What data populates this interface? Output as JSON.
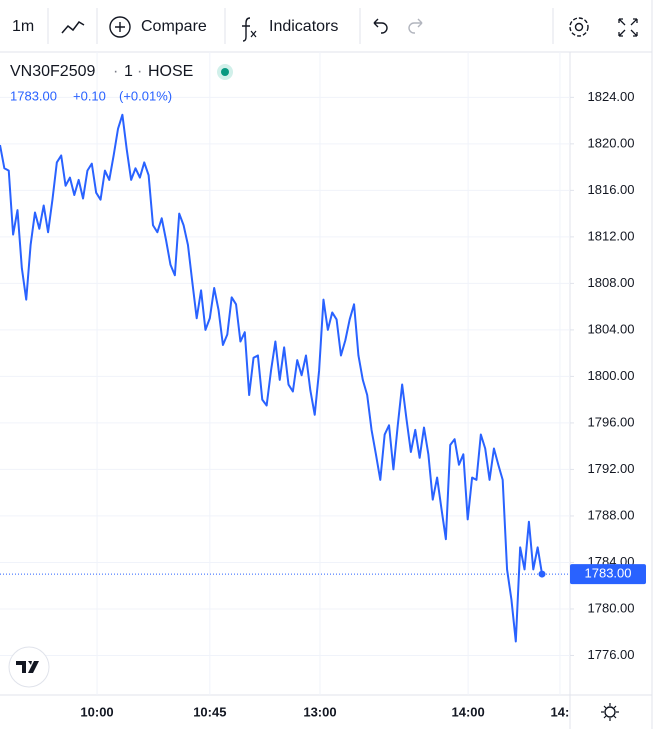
{
  "toolbar": {
    "interval": "1m",
    "compare": "Compare",
    "indicators": "Indicators"
  },
  "chart_data": {
    "type": "line",
    "header": {
      "symbol": "VN30F2509",
      "interval": "1",
      "exchange": "HOSE",
      "price": "1783.00",
      "change": "+0.10",
      "change_pct": "(+0.01%)"
    },
    "series": [
      {
        "name": "VN30F2509",
        "color": "#2962ff",
        "values": [
          1819.9,
          1817.9,
          1817.7,
          1812.2,
          1814.3,
          1809.3,
          1806.6,
          1811.3,
          1814.1,
          1812.7,
          1814.7,
          1812.4,
          1815.2,
          1818.4,
          1819.0,
          1816.4,
          1817.1,
          1815.6,
          1816.9,
          1815.3,
          1817.7,
          1818.3,
          1815.8,
          1815.2,
          1817.7,
          1816.9,
          1819.0,
          1821.3,
          1822.5,
          1819.5,
          1816.9,
          1817.9,
          1817.1,
          1818.4,
          1817.3,
          1813.0,
          1812.4,
          1813.6,
          1811.7,
          1809.6,
          1808.7,
          1814.0,
          1813.0,
          1811.3,
          1808.1,
          1805.0,
          1807.4,
          1804.0,
          1805.0,
          1807.6,
          1805.7,
          1802.7,
          1803.6,
          1806.8,
          1806.2,
          1803.0,
          1803.8,
          1798.4,
          1801.6,
          1801.8,
          1798.0,
          1797.5,
          1800.5,
          1803.0,
          1799.7,
          1802.5,
          1799.3,
          1798.7,
          1801.4,
          1800.1,
          1801.8,
          1798.8,
          1796.7,
          1800.5,
          1806.6,
          1804.0,
          1805.5,
          1804.9,
          1801.8,
          1803.1,
          1804.9,
          1806.2,
          1801.8,
          1799.7,
          1798.4,
          1795.4,
          1793.3,
          1791.1,
          1795.0,
          1795.8,
          1792.0,
          1795.8,
          1799.3,
          1796.3,
          1793.5,
          1795.4,
          1793.0,
          1795.6,
          1793.3,
          1789.4,
          1791.3,
          1788.6,
          1786.0,
          1794.1,
          1794.6,
          1792.4,
          1793.3,
          1787.7,
          1791.3,
          1791.1,
          1795.0,
          1793.8,
          1791.1,
          1793.8,
          1792.4,
          1791.1,
          1783.4,
          1780.8,
          1777.2,
          1785.3,
          1783.4,
          1787.5,
          1783.4,
          1785.3,
          1783.0
        ]
      }
    ],
    "last_price": {
      "value": 1783,
      "label": "1783.00"
    },
    "xlim": [
      0,
      130.4
    ],
    "xticks": [
      {
        "value": 22.2,
        "label": "10:00"
      },
      {
        "value": 48,
        "label": "10:45"
      },
      {
        "value": 73.2,
        "label": "13:00"
      },
      {
        "value": 107.1,
        "label": "14:00"
      },
      {
        "value": 128.1,
        "label": "14:"
      }
    ],
    "ylim": [
      1772.6,
      1827.9
    ],
    "yticks": [
      {
        "value": 1776,
        "label": "1776.00"
      },
      {
        "value": 1780,
        "label": "1780.00"
      },
      {
        "value": 1784,
        "label": "1784.00"
      },
      {
        "value": 1788,
        "label": "1788.00"
      },
      {
        "value": 1792,
        "label": "1792.00"
      },
      {
        "value": 1796,
        "label": "1796.00"
      },
      {
        "value": 1800,
        "label": "1800.00"
      },
      {
        "value": 1804,
        "label": "1804.00"
      },
      {
        "value": 1808,
        "label": "1808.00"
      },
      {
        "value": 1812,
        "label": "1812.00"
      },
      {
        "value": 1816,
        "label": "1816.00"
      },
      {
        "value": 1820,
        "label": "1820.00"
      },
      {
        "value": 1824,
        "label": "1824.00"
      }
    ],
    "grid": true
  }
}
